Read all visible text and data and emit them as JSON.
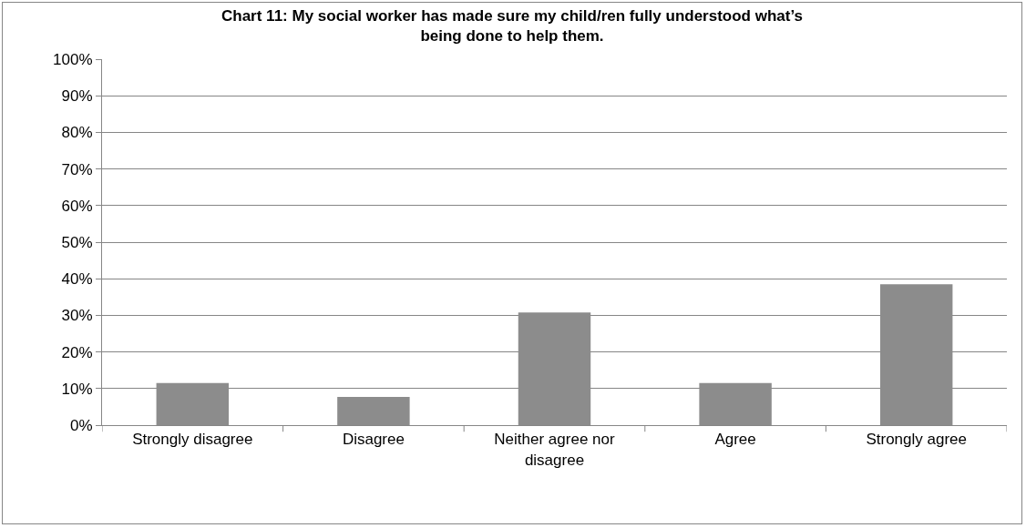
{
  "chart_data": {
    "type": "bar",
    "title": "Chart 11: My social worker has made sure my child/ren fully understood what’s being done to help them.",
    "categories": [
      "Strongly disagree",
      "Disagree",
      "Neither agree nor disagree",
      "Agree",
      "Strongly agree"
    ],
    "values": [
      11.5,
      7.7,
      30.8,
      11.5,
      38.5
    ],
    "color": "#8c8c8c",
    "ylim": [
      0,
      100
    ],
    "yticks": [
      {
        "value": 0,
        "label": "0%"
      },
      {
        "value": 10,
        "label": "10%"
      },
      {
        "value": 20,
        "label": "20%"
      },
      {
        "value": 30,
        "label": "30%"
      },
      {
        "value": 40,
        "label": "40%"
      },
      {
        "value": 50,
        "label": "50%"
      },
      {
        "value": 60,
        "label": "60%"
      },
      {
        "value": 70,
        "label": "70%"
      },
      {
        "value": 80,
        "label": "80%"
      },
      {
        "value": 90,
        "label": "90%"
      },
      {
        "value": 100,
        "label": "100%"
      }
    ],
    "grid": "y",
    "legend": false
  }
}
